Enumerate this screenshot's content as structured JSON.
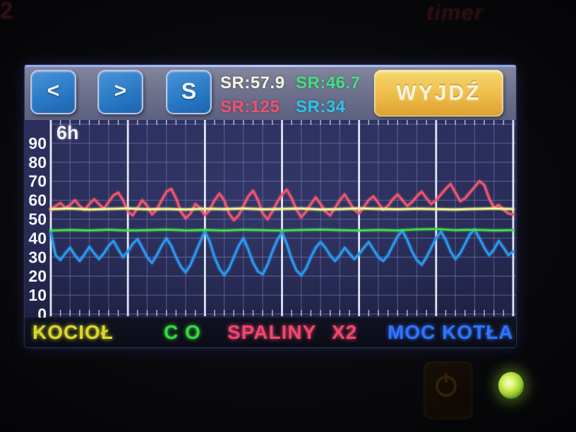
{
  "bezel": {
    "brand": "timer",
    "corner_glyph": "2"
  },
  "screen": {
    "toolbar": {
      "prev_label": "<",
      "next_label": ">",
      "s_label": "S",
      "readouts": [
        {
          "label": "SR:57.9",
          "color": "#f4f4e2"
        },
        {
          "label": "SR:46.7",
          "color": "#41e07c"
        },
        {
          "label": "SR:125",
          "color": "#f05270"
        },
        {
          "label": "SR:34",
          "color": "#2ac5e8"
        }
      ],
      "exit_label": "WYJDŹ"
    },
    "legend": {
      "items": [
        {
          "label": "KOCIOŁ",
          "color": "#d9d92b"
        },
        {
          "label": "C O",
          "color": "#38d93e"
        },
        {
          "label": "SPALINY",
          "color": "#ef476e"
        },
        {
          "label": "X2",
          "color": "#ef476e"
        },
        {
          "label": "MOC KOTŁA",
          "color": "#2f74ff"
        }
      ]
    }
  },
  "indicators": {
    "power_led_color": "#b8e43c"
  },
  "chart_data": {
    "type": "line",
    "time_window": "6h",
    "x_axis": {
      "span_hours": 6,
      "major_gridline_every_hours": 1,
      "minor_divisions_per_hour": 4
    },
    "y_axis": {
      "min": 0,
      "max": 100,
      "tick_step": 10,
      "tick_labels": [
        "90",
        "80",
        "70",
        "60",
        "50",
        "40",
        "30",
        "20",
        "10",
        "0"
      ]
    },
    "grid": {
      "background": "#272a52",
      "minor_color": "#7079bd",
      "major_color": "#eef1ff",
      "tick_color": "#cfd6f2",
      "label_color": "#f4f5fb"
    },
    "legend_position": "bottom",
    "series": [
      {
        "name": "KOCIOŁ",
        "readout": "SR:57.9",
        "color": "#f2f296",
        "width": 3,
        "values": [
          55.3,
          55.6,
          55.1,
          55.4,
          55.7,
          55.2,
          55.4,
          55.1,
          55.5,
          55.3,
          55.6,
          55.2,
          55.4,
          55.6,
          55.1,
          55.3,
          55.7,
          55.4,
          55.2,
          55.5,
          55.3,
          55.1,
          55.4,
          55.6,
          55.3
        ]
      },
      {
        "name": "C O",
        "readout": "SR:46.7",
        "color": "#45e14b",
        "width": 2.6,
        "values": [
          44.0,
          44.3,
          44.1,
          44.4,
          44.0,
          44.2,
          44.5,
          44.1,
          44.3,
          44.0,
          44.4,
          44.2,
          44.0,
          44.3,
          44.5,
          44.2,
          44.0,
          44.3,
          44.1,
          44.6,
          44.8,
          44.2,
          44.4,
          44.1,
          44.2
        ]
      },
      {
        "name": "SPALINY X2",
        "readout": "SR:125",
        "color": "#f2566f",
        "width": 3,
        "values": [
          55,
          57,
          58.5,
          56,
          57.5,
          60,
          57,
          55,
          58,
          60.5,
          58,
          55.5,
          59,
          62.5,
          64,
          60,
          54,
          52,
          56,
          60,
          57,
          52.5,
          55,
          60,
          64.5,
          66,
          61,
          54,
          50.5,
          53,
          58,
          56,
          52,
          55,
          60,
          63.5,
          60,
          53,
          49.5,
          52,
          57,
          62,
          65,
          60,
          53,
          50,
          54,
          59,
          63,
          65.5,
          61,
          55,
          51,
          54,
          58,
          61.5,
          58,
          54,
          52,
          56,
          60,
          63,
          59,
          55,
          53,
          56.5,
          60,
          62,
          58.5,
          55,
          57,
          60.5,
          63,
          60,
          57,
          59,
          62,
          64.5,
          61,
          58,
          60,
          63,
          66,
          68.5,
          64,
          59.5,
          61,
          64,
          67,
          70,
          68,
          61,
          56,
          57.5,
          55,
          53,
          52.5
        ]
      },
      {
        "name": "MOC KOTŁA",
        "readout": "SR:34",
        "color": "#2b99f2",
        "width": 3,
        "values": [
          43,
          31,
          28.5,
          32,
          35,
          31,
          28,
          31.5,
          35.5,
          32,
          29,
          32,
          36,
          38.5,
          34,
          30,
          33,
          37,
          39.5,
          35,
          30,
          27,
          31,
          36,
          40,
          36,
          30,
          25,
          22,
          26,
          32,
          38,
          43.5,
          38,
          30,
          24,
          20.5,
          24,
          30,
          36,
          40,
          34,
          27,
          22.5,
          21,
          26,
          33,
          39,
          43,
          37,
          29,
          23,
          20.5,
          24,
          30,
          35,
          38,
          35,
          31,
          28,
          31,
          35,
          32,
          29,
          31.5,
          35,
          38,
          34,
          30,
          28,
          31,
          36,
          41,
          44,
          39,
          33,
          28.5,
          26,
          30,
          35,
          40,
          43.5,
          39,
          33,
          29,
          32,
          37,
          42,
          44.5,
          40,
          35,
          31,
          34,
          38.5,
          35,
          31,
          33
        ]
      }
    ]
  }
}
